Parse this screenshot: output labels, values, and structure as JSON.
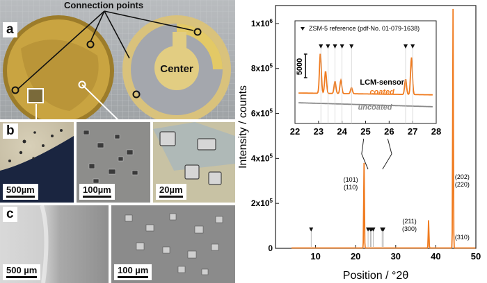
{
  "photos": {
    "connection_points_label": "Connection points",
    "center_label": "Center",
    "panel_a": "a",
    "panel_b": "b",
    "panel_c": "c",
    "b_scales": [
      "500µm",
      "100µm",
      "20µm"
    ],
    "c_scales": [
      "500 µm",
      "100 µm"
    ]
  },
  "chart_data": {
    "type": "line",
    "xlabel": "Position / °2θ",
    "ylabel": "Intensity / counts",
    "xlim": [
      0,
      50
    ],
    "ylim": [
      0,
      1080000
    ],
    "x_ticks": [
      10,
      20,
      30,
      40,
      50
    ],
    "y_ticks": [
      {
        "v": 0,
        "t": "0"
      },
      {
        "v": 200000,
        "t": "2x10"
      },
      {
        "v": 400000,
        "t": "4x10"
      },
      {
        "v": 600000,
        "t": "6x10"
      },
      {
        "v": 800000,
        "t": "8x10"
      },
      {
        "v": 1000000,
        "t": "1x10"
      }
    ],
    "y_tick_exp": "5",
    "y_tick_exp_top": "6",
    "peaks": [
      {
        "x": 9.0,
        "y": 1500
      },
      {
        "x": 22.1,
        "y": 380000
      },
      {
        "x": 38.2,
        "y": 125000
      },
      {
        "x": 44.3,
        "y": 1065000
      }
    ],
    "peak_labels": [
      {
        "x": 21.2,
        "text": [
          "(101)",
          "(110)"
        ]
      },
      {
        "x": 36.9,
        "text": [
          "(211)",
          "(300)"
        ]
      },
      {
        "x": 46.6,
        "text": [
          "(202)",
          "(220)"
        ]
      },
      {
        "x": 46.6,
        "text": [
          "(310)"
        ]
      }
    ],
    "reference_markers_x": [
      8.9,
      23.1,
      23.7,
      24.0,
      24.4,
      26.6,
      26.9
    ],
    "inset": {
      "xlim": [
        22,
        28
      ],
      "x_ticks": [
        22,
        23,
        24,
        25,
        26,
        27,
        28
      ],
      "legend": "ZSM-5 reference (pdf-No. 01-079-1638)",
      "scale_label": "5000",
      "sensor_label": "LCM-sensor",
      "coated_label": "coated",
      "uncoated_label": "uncoated",
      "coated_peaks": [
        {
          "x": 23.08,
          "h": 1.0
        },
        {
          "x": 23.3,
          "h": 0.55
        },
        {
          "x": 23.7,
          "h": 0.3
        },
        {
          "x": 23.95,
          "h": 0.33
        },
        {
          "x": 24.4,
          "h": 0.15
        },
        {
          "x": 26.7,
          "h": 0.38
        },
        {
          "x": 26.95,
          "h": 0.92
        }
      ],
      "reference_markers_x": [
        23.1,
        23.4,
        23.7,
        24.0,
        24.4,
        26.7,
        27.0
      ]
    },
    "colors": {
      "coated": "#f07b1f",
      "uncoated": "#8a8a8a",
      "main": "#f07b1f"
    }
  }
}
